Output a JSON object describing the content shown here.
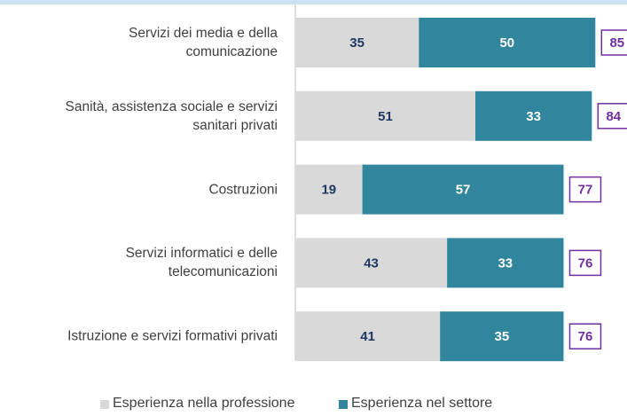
{
  "chart_data": {
    "type": "stacked-bar-horizontal",
    "categories": [
      "Servizi dei media e della\ncomunicazione",
      "Sanità, assistenza sociale e servizi\nsanitari privati",
      "Costruzioni",
      "Servizi informatici e delle\ntelecomunicazioni",
      "Istruzione e servizi formativi privati"
    ],
    "series": [
      {
        "name": "Esperienza nella professione",
        "color": "#d9d9d9",
        "values": [
          35,
          51,
          19,
          43,
          41
        ]
      },
      {
        "name": "Esperienza nel settore",
        "color": "#31859c",
        "values": [
          50,
          33,
          57,
          33,
          35
        ]
      }
    ],
    "totals": [
      85,
      84,
      77,
      76,
      76
    ],
    "total_color": "#7030a0",
    "label_color": "#1f3864",
    "legend": "bottom"
  }
}
